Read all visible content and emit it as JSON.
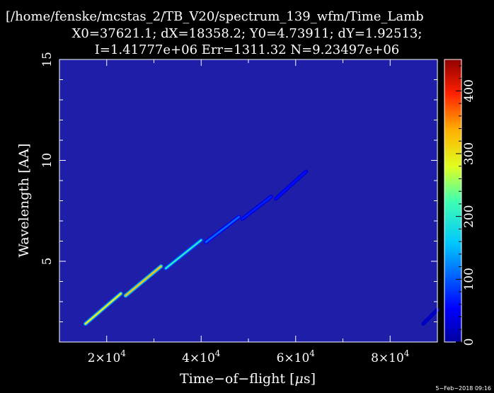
{
  "chart_data": {
    "type": "heatmap",
    "title_lines": [
      "[/home/fenske/mcstas_2/TB_V20/spectrum_139_wfm/Time_Lamb",
      "X0=37621.1; dX=18358.2; Y0=4.73911; dY=1.92513;",
      "I=1.41777e+06 Err=1311.32 N=9.23497e+06"
    ],
    "xlabel": "Time−of−flight [",
    "xlabel_symbol": "μ",
    "xlabel_unit": "s]",
    "ylabel": "Wavelength [AA]",
    "xlim": [
      10000,
      90000
    ],
    "ylim": [
      1,
      15
    ],
    "x_tick_values": [
      20000,
      40000,
      60000,
      80000
    ],
    "x_tick_mantissa": [
      "2",
      "4",
      "6",
      "8"
    ],
    "x_tick_exponent": "4",
    "y_ticks": [
      5,
      10,
      15
    ],
    "colorbar": {
      "min": 0,
      "max": 450,
      "ticks": [
        0,
        100,
        200,
        300,
        400
      ]
    },
    "background_color": "#1e1ea8",
    "segments": [
      {
        "x0": 15500,
        "y0": 1.9,
        "x1": 23000,
        "y1": 3.4,
        "intensity": 290
      },
      {
        "x0": 24000,
        "y0": 3.3,
        "x1": 31500,
        "y1": 4.75,
        "intensity": 320
      },
      {
        "x0": 32500,
        "y0": 4.65,
        "x1": 40000,
        "y1": 6.05,
        "intensity": 200
      },
      {
        "x0": 41000,
        "y0": 5.95,
        "x1": 48000,
        "y1": 7.2,
        "intensity": 110
      },
      {
        "x0": 48700,
        "y0": 7.1,
        "x1": 54800,
        "y1": 8.2,
        "intensity": 70
      },
      {
        "x0": 55800,
        "y0": 8.1,
        "x1": 62200,
        "y1": 9.45,
        "intensity": 60
      },
      {
        "x0": 87000,
        "y0": 1.9,
        "x1": 90000,
        "y1": 2.6,
        "intensity": 25
      }
    ]
  },
  "timestamp": "5−Feb−2018 09:16"
}
